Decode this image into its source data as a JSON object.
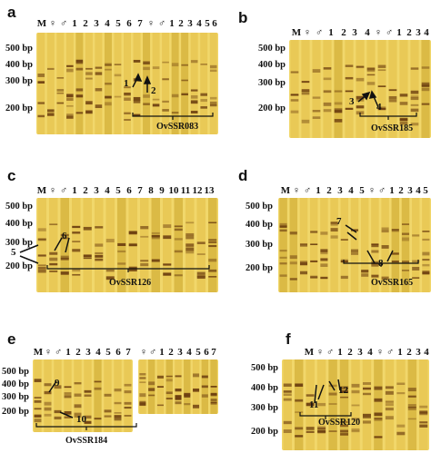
{
  "panels": [
    {
      "id": "a",
      "label": "a",
      "lanes": [
        "M",
        "♀",
        "♂",
        "1",
        "2",
        "3",
        "4",
        "5",
        "6",
        "7",
        "♀",
        "♂",
        "1",
        "2",
        "3",
        "4",
        "5",
        "6",
        "7"
      ],
      "bp_labels": [
        "500 bp",
        "400 bp",
        "300 bp",
        "200 bp"
      ],
      "markers": [
        "1",
        "2"
      ],
      "locus": "OvSSR083"
    },
    {
      "id": "b",
      "label": "b",
      "lanes": [
        "M",
        "♀",
        "♂",
        "1",
        "2",
        "3",
        "4",
        "♀",
        "♂",
        "1",
        "2",
        "3",
        "4"
      ],
      "bp_labels": [
        "500 bp",
        "400 bp",
        "300 bp",
        "200 bp"
      ],
      "markers": [
        "3",
        "4"
      ],
      "locus": "OvSSR185"
    },
    {
      "id": "c",
      "label": "c",
      "lanes": [
        "M",
        "♀",
        "♂",
        "1",
        "2",
        "3",
        "4",
        "5",
        "6",
        "7",
        "8",
        "9",
        "10",
        "11",
        "12",
        "13"
      ],
      "bp_labels": [
        "500 bp",
        "400 bp",
        "300 bp",
        "200 bp"
      ],
      "markers": [
        "5",
        "6"
      ],
      "locus": "OvSSR126"
    },
    {
      "id": "d",
      "label": "d",
      "lanes": [
        "M",
        "♀",
        "♂",
        "1",
        "2",
        "3",
        "4",
        "5",
        "♀",
        "♂",
        "1",
        "2",
        "3",
        "4",
        "5"
      ],
      "bp_labels": [
        "500 bp",
        "400 bp",
        "300 bp",
        "200 bp"
      ],
      "markers": [
        "7",
        "8"
      ],
      "locus": "OvSSR165"
    },
    {
      "id": "e",
      "label": "e",
      "lanes": [
        "M",
        "♀",
        "♂",
        "1",
        "2",
        "3",
        "4",
        "5",
        "6",
        "7",
        "♀",
        "♂",
        "1",
        "2",
        "3",
        "4",
        "5",
        "6",
        "7"
      ],
      "bp_labels": [
        "500 bp",
        "400 bp",
        "300 bp",
        "200 bp"
      ],
      "markers": [
        "9",
        "10"
      ],
      "locus": "OvSSR184"
    },
    {
      "id": "f",
      "label": "f",
      "lanes": [
        "M",
        "♀",
        "♂",
        "1",
        "2",
        "3",
        "4",
        "♀",
        "♂",
        "1",
        "2",
        "3",
        "4"
      ],
      "bp_labels": [
        "500 bp",
        "400 bp",
        "300 bp",
        "200 bp"
      ],
      "markers": [
        "11",
        "12"
      ],
      "locus": "OvSSR120"
    }
  ],
  "colors": {
    "gel_light": "#f1d76b",
    "gel_mid": "#c9a326",
    "gel_dark": "#5a3d0c",
    "band": "#6b3d0f",
    "background": "#ffffff"
  }
}
